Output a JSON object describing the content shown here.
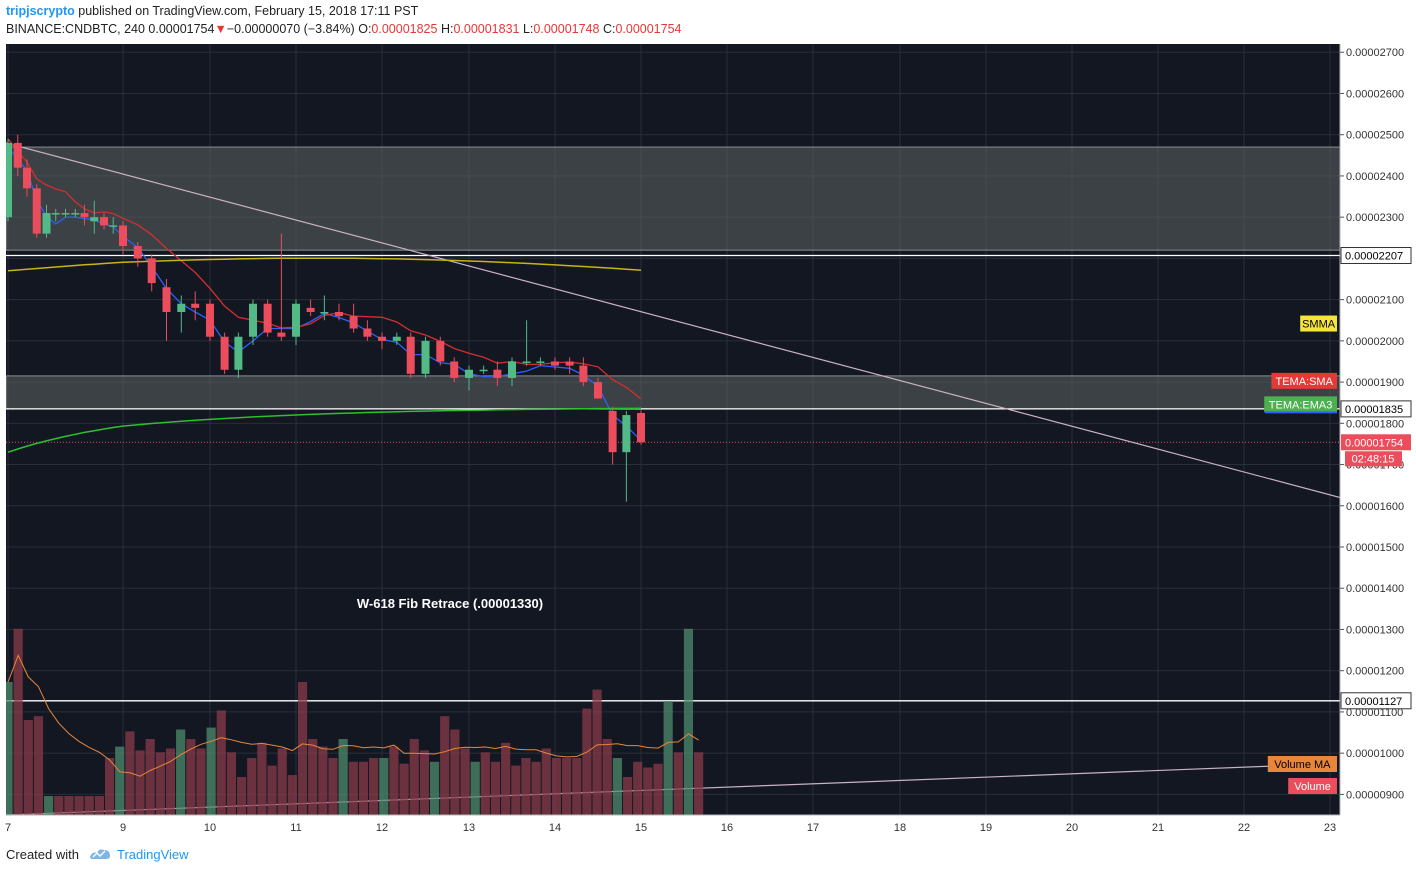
{
  "header": {
    "author": "tripjscrypto",
    "published_text": "published on TradingView.com, February 15, 2018 17:11 PST",
    "symbol": "BINANCE:CNDBTC, 240",
    "last": "0.00001754",
    "change": "−0.00000070 (−3.84%)",
    "o_label": "O:",
    "o_val": "0.00001825",
    "h_label": "H:",
    "h_val": "0.00001831",
    "l_label": "L:",
    "l_val": "0.00001748",
    "c_label": "C:",
    "c_val": "0.00001754"
  },
  "footer": {
    "created_with": "Created with",
    "brand": "TradingView"
  },
  "colors": {
    "bg": "#131722",
    "grid": "#2a2e39",
    "up": "#53b987",
    "down": "#eb4d5c",
    "zone": "#5d6463",
    "trend": "#c9b2c4",
    "smma": "#c8b416",
    "tema_sma": "#d32f2f",
    "tema_ema3": "#2962ff",
    "green_ma": "#2ebf2e",
    "vol_ma": "#e8863b"
  },
  "chart_data": {
    "type": "candlestick",
    "symbol": "BINANCE:CNDBTC",
    "interval": "240",
    "x_ticks": [
      "7",
      "9",
      "10",
      "11",
      "12",
      "13",
      "14",
      "15",
      "16",
      "17",
      "18",
      "19",
      "20",
      "21",
      "22",
      "23"
    ],
    "y_ticks": [
      "0.00000900",
      "0.00001000",
      "0.00001100",
      "0.00001200",
      "0.00001300",
      "0.00001400",
      "0.00001500",
      "0.00001600",
      "0.00001700",
      "0.00001800",
      "0.00001900",
      "0.00002000",
      "0.00002100",
      "0.00002200",
      "0.00002300",
      "0.00002400",
      "0.00002500",
      "0.00002600",
      "0.00002700"
    ],
    "ylim": [
      8.5e-06,
      2.72e-05
    ],
    "x_day_range": [
      7.0,
      23.0
    ],
    "candles": [
      {
        "t": 7.0,
        "o": 2.3e-05,
        "h": 2.49e-05,
        "l": 2.29e-05,
        "c": 2.48e-05
      },
      {
        "t": 7.17,
        "o": 2.48e-05,
        "h": 2.5e-05,
        "l": 2.4e-05,
        "c": 2.42e-05
      },
      {
        "t": 7.33,
        "o": 2.42e-05,
        "h": 2.44e-05,
        "l": 2.35e-05,
        "c": 2.37e-05
      },
      {
        "t": 7.5,
        "o": 2.37e-05,
        "h": 2.38e-05,
        "l": 2.25e-05,
        "c": 2.26e-05
      },
      {
        "t": 7.67,
        "o": 2.26e-05,
        "h": 2.33e-05,
        "l": 2.25e-05,
        "c": 2.31e-05
      },
      {
        "t": 7.83,
        "o": 2.31e-05,
        "h": 2.32e-05,
        "l": 2.29e-05,
        "c": 2.31e-05
      },
      {
        "t": 8.0,
        "o": 2.31e-05,
        "h": 2.32e-05,
        "l": 2.3e-05,
        "c": 2.31e-05
      },
      {
        "t": 8.17,
        "o": 2.31e-05,
        "h": 2.32e-05,
        "l": 2.3e-05,
        "c": 2.31e-05
      },
      {
        "t": 8.33,
        "o": 2.31e-05,
        "h": 2.33e-05,
        "l": 2.28e-05,
        "c": 2.3e-05
      },
      {
        "t": 8.5,
        "o": 2.29e-05,
        "h": 2.34e-05,
        "l": 2.26e-05,
        "c": 2.3e-05
      },
      {
        "t": 8.67,
        "o": 2.3e-05,
        "h": 2.31e-05,
        "l": 2.27e-05,
        "c": 2.28e-05
      },
      {
        "t": 8.83,
        "o": 2.28e-05,
        "h": 2.3e-05,
        "l": 2.26e-05,
        "c": 2.28e-05
      },
      {
        "t": 9.0,
        "o": 2.28e-05,
        "h": 2.29e-05,
        "l": 2.21e-05,
        "c": 2.23e-05
      },
      {
        "t": 9.17,
        "o": 2.23e-05,
        "h": 2.24e-05,
        "l": 2.18e-05,
        "c": 2.2e-05
      },
      {
        "t": 9.33,
        "o": 2.2e-05,
        "h": 2.21e-05,
        "l": 2.12e-05,
        "c": 2.14e-05
      },
      {
        "t": 9.5,
        "o": 2.13e-05,
        "h": 2.15e-05,
        "l": 2e-05,
        "c": 2.07e-05
      },
      {
        "t": 9.67,
        "o": 2.07e-05,
        "h": 2.11e-05,
        "l": 2.02e-05,
        "c": 2.09e-05
      },
      {
        "t": 9.83,
        "o": 2.09e-05,
        "h": 2.12e-05,
        "l": 2.05e-05,
        "c": 2.08e-05
      },
      {
        "t": 10.0,
        "o": 2.09e-05,
        "h": 2.1e-05,
        "l": 2e-05,
        "c": 2.01e-05
      },
      {
        "t": 10.17,
        "o": 2.01e-05,
        "h": 2.02e-05,
        "l": 1.92e-05,
        "c": 1.93e-05
      },
      {
        "t": 10.33,
        "o": 1.93e-05,
        "h": 2.02e-05,
        "l": 1.91e-05,
        "c": 2.01e-05
      },
      {
        "t": 10.5,
        "o": 2.01e-05,
        "h": 2.1e-05,
        "l": 1.99e-05,
        "c": 2.09e-05
      },
      {
        "t": 10.67,
        "o": 2.09e-05,
        "h": 2.1e-05,
        "l": 2.01e-05,
        "c": 2.02e-05
      },
      {
        "t": 10.83,
        "o": 2.02e-05,
        "h": 2.26e-05,
        "l": 2e-05,
        "c": 2.01e-05
      },
      {
        "t": 11.0,
        "o": 2.01e-05,
        "h": 2.1e-05,
        "l": 1.99e-05,
        "c": 2.09e-05
      },
      {
        "t": 11.17,
        "o": 2.08e-05,
        "h": 2.1e-05,
        "l": 2.06e-05,
        "c": 2.07e-05
      },
      {
        "t": 11.33,
        "o": 2.07e-05,
        "h": 2.11e-05,
        "l": 2.05e-05,
        "c": 2.07e-05
      },
      {
        "t": 11.5,
        "o": 2.07e-05,
        "h": 2.09e-05,
        "l": 2.05e-05,
        "c": 2.06e-05
      },
      {
        "t": 11.67,
        "o": 2.06e-05,
        "h": 2.09e-05,
        "l": 2.02e-05,
        "c": 2.03e-05
      },
      {
        "t": 11.83,
        "o": 2.03e-05,
        "h": 2.05e-05,
        "l": 2e-05,
        "c": 2.01e-05
      },
      {
        "t": 12.0,
        "o": 2.01e-05,
        "h": 2.02e-05,
        "l": 1.98e-05,
        "c": 2e-05
      },
      {
        "t": 12.17,
        "o": 2e-05,
        "h": 2.02e-05,
        "l": 1.99e-05,
        "c": 2.01e-05
      },
      {
        "t": 12.33,
        "o": 2.01e-05,
        "h": 2.02e-05,
        "l": 1.91e-05,
        "c": 1.92e-05
      },
      {
        "t": 12.5,
        "o": 1.92e-05,
        "h": 2.01e-05,
        "l": 1.91e-05,
        "c": 2e-05
      },
      {
        "t": 12.67,
        "o": 2e-05,
        "h": 2.01e-05,
        "l": 1.94e-05,
        "c": 1.95e-05
      },
      {
        "t": 12.83,
        "o": 1.95e-05,
        "h": 1.96e-05,
        "l": 1.9e-05,
        "c": 1.91e-05
      },
      {
        "t": 13.0,
        "o": 1.91e-05,
        "h": 1.94e-05,
        "l": 1.88e-05,
        "c": 1.93e-05
      },
      {
        "t": 13.17,
        "o": 1.93e-05,
        "h": 1.94e-05,
        "l": 1.92e-05,
        "c": 1.93e-05
      },
      {
        "t": 13.33,
        "o": 1.93e-05,
        "h": 1.95e-05,
        "l": 1.89e-05,
        "c": 1.91e-05
      },
      {
        "t": 13.5,
        "o": 1.91e-05,
        "h": 1.96e-05,
        "l": 1.89e-05,
        "c": 1.95e-05
      },
      {
        "t": 13.67,
        "o": 1.95e-05,
        "h": 2.05e-05,
        "l": 1.94e-05,
        "c": 1.95e-05
      },
      {
        "t": 13.83,
        "o": 1.95e-05,
        "h": 1.96e-05,
        "l": 1.94e-05,
        "c": 1.95e-05
      },
      {
        "t": 14.0,
        "o": 1.95e-05,
        "h": 1.96e-05,
        "l": 1.93e-05,
        "c": 1.94e-05
      },
      {
        "t": 14.17,
        "o": 1.95e-05,
        "h": 1.96e-05,
        "l": 1.92e-05,
        "c": 1.94e-05
      },
      {
        "t": 14.33,
        "o": 1.94e-05,
        "h": 1.96e-05,
        "l": 1.89e-05,
        "c": 1.9e-05
      },
      {
        "t": 14.5,
        "o": 1.9e-05,
        "h": 1.91e-05,
        "l": 1.86e-05,
        "c": 1.86e-05
      },
      {
        "t": 14.67,
        "o": 1.83e-05,
        "h": 1.84e-05,
        "l": 1.7e-05,
        "c": 1.73e-05
      },
      {
        "t": 14.83,
        "o": 1.73e-05,
        "h": 1.83e-05,
        "l": 1.61e-05,
        "c": 1.82e-05
      },
      {
        "t": 15.0,
        "o": 1.825e-05,
        "h": 1.831e-05,
        "l": 1.748e-05,
        "c": 1.754e-05
      }
    ],
    "volume_bars": [
      0.7,
      0.98,
      0.5,
      0.52,
      0.1,
      0.1,
      0.1,
      0.1,
      0.1,
      0.1,
      0.3,
      0.36,
      0.44,
      0.34,
      0.4,
      0.33,
      0.35,
      0.45,
      0.4,
      0.35,
      0.46,
      0.55,
      0.33,
      0.2,
      0.3,
      0.38,
      0.26,
      0.35,
      0.21,
      0.7,
      0.4,
      0.36,
      0.3,
      0.4,
      0.28,
      0.28,
      0.3,
      0.3,
      0.36,
      0.27,
      0.4,
      0.34,
      0.28,
      0.52,
      0.45,
      0.35,
      0.28,
      0.33,
      0.28,
      0.38,
      0.26,
      0.3,
      0.28,
      0.35,
      0.3,
      0.3,
      0.3,
      0.56,
      0.66,
      0.4,
      0.3,
      0.2,
      0.28,
      0.25,
      0.27,
      0.6,
      0.33,
      0.98,
      0.33
    ],
    "horizontal_lines": [
      {
        "price": 2.207e-05,
        "label": "0.00002207",
        "color": "#ffffff"
      },
      {
        "price": 1.835e-05,
        "label": "0.00001835",
        "color": "#ffffff"
      },
      {
        "price": 1.127e-05,
        "label": "0.00001127",
        "color": "#ffffff"
      }
    ],
    "zones": [
      {
        "from": 2.22e-05,
        "to": 2.47e-05
      },
      {
        "from": 1.835e-05,
        "to": 1.915e-05
      }
    ],
    "last_price": {
      "price": 1.754e-05,
      "label": "0.00001754",
      "countdown": "02:48:15"
    },
    "indicator_labels": [
      {
        "text": "SMMA",
        "price": 2.042e-05,
        "bg": "#f5e53a",
        "fg": "#000000"
      },
      {
        "text": "TEMA:SMA",
        "price": 1.903e-05,
        "bg": "#e53935",
        "fg": "#ffffff"
      },
      {
        "text": "TEMA:EMA3",
        "price": 1.846e-05,
        "bg": "#4caf50",
        "fg": "#ffffff"
      }
    ],
    "volume_labels": [
      {
        "text": "Volume MA",
        "bg": "#e8863b",
        "fg": "#000000"
      },
      {
        "text": "Volume",
        "bg": "#eb4d5c",
        "fg": "#ffffff"
      }
    ],
    "annotation": "W-618 Fib Retrace (.00001330)",
    "cut_off_price_label": "0.000017"
  }
}
